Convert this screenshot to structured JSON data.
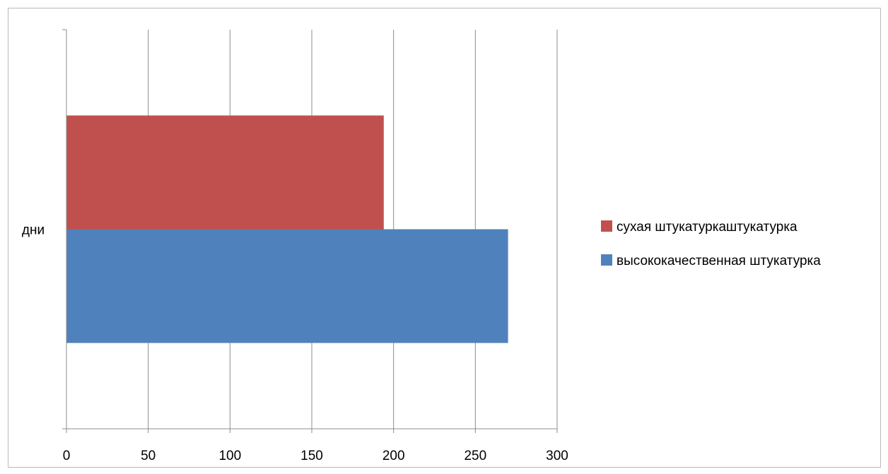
{
  "chart_data": {
    "type": "bar",
    "orientation": "horizontal",
    "categories": [
      "дни"
    ],
    "series": [
      {
        "name": "сухая штукатуркаштукатурка",
        "values": [
          194
        ],
        "color": "#c0504d"
      },
      {
        "name": "высококачественная  штукатурка",
        "values": [
          270
        ],
        "color": "#4f81bd"
      }
    ],
    "xlim": [
      0,
      300
    ],
    "xticks": [
      "0",
      "50",
      "100",
      "150",
      "200",
      "250",
      "300"
    ],
    "grid": true,
    "legend_position": "right"
  }
}
